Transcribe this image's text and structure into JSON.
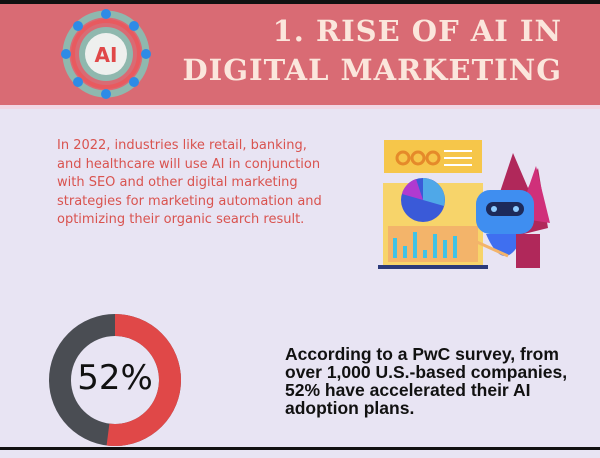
{
  "header": {
    "title_line1": "1. RISE OF AI IN",
    "title_line2": "DIGITAL MARKETING",
    "logo_text": "AI",
    "color": "#d96b74"
  },
  "intro": {
    "text": "In 2022, industries like retail, banking, and healthcare will use AI in conjunction with SEO and other digital marketing strategies for marketing automation and optimizing their organic search result."
  },
  "illustration": {
    "icon": "robot-analytics-dashboard-illustration"
  },
  "stat": {
    "percent_label": "52%",
    "percent_value": 52,
    "fill_color": "#e04848",
    "rest_color": "#4a4d53",
    "text": "According to a PwC survey, from over 1,000 U.S.-based companies, 52% have accelerated their AI adoption plans."
  }
}
